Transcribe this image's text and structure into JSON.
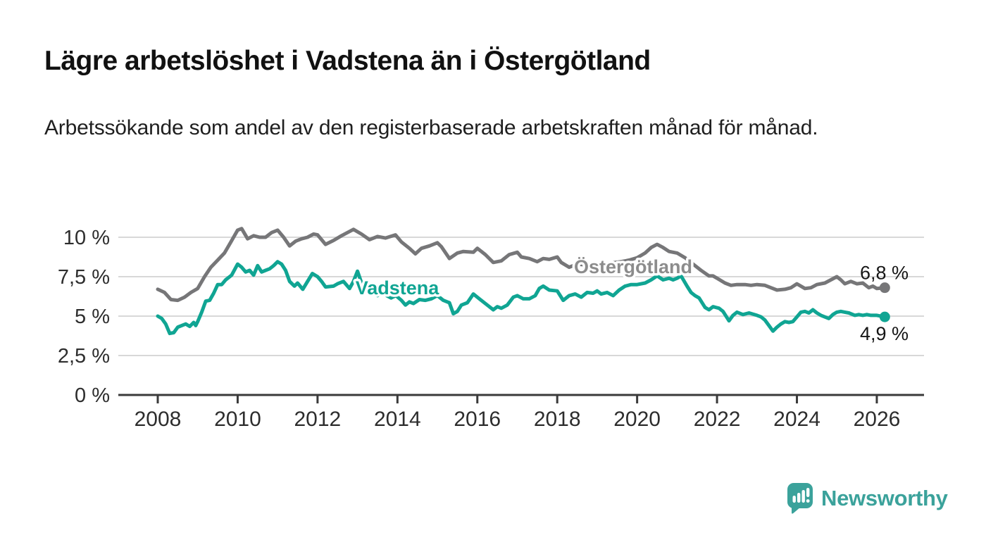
{
  "header": {
    "title": "Lägre arbetslöshet i Vadstena än i Östergötland",
    "subtitle": "Arbetssökande som andel av den registerbaserade arbetskraften månad för månad."
  },
  "branding": {
    "name": "Newsworthy",
    "color": "#3BA29B"
  },
  "chart_data": {
    "type": "line",
    "title": "Lägre arbetslöshet i Vadstena än i Östergötland",
    "ylabel": "Arbetssökande som andel av den registerbaserade arbetskraften",
    "unit": "%",
    "grid": true,
    "x_axis": {
      "ticks": [
        2008,
        2010,
        2012,
        2014,
        2016,
        2018,
        2020,
        2022,
        2024,
        2026
      ],
      "range": [
        2007.0,
        2027.2
      ]
    },
    "y_axis": {
      "ticks": [
        {
          "value": 10,
          "label": "10 %"
        },
        {
          "value": 7.5,
          "label": "7,5 %"
        },
        {
          "value": 5,
          "label": "5 %"
        },
        {
          "value": 2.5,
          "label": "2,5 %"
        },
        {
          "value": 0,
          "label": "0 %"
        }
      ],
      "range": [
        0,
        11.5
      ]
    },
    "axis_color": "#3a3a3a",
    "gridline_color": "#d8d8d8",
    "series": [
      {
        "name": "Östergötland",
        "color": "#767678",
        "end_value": 6.8,
        "end_label": "6,8 %",
        "end_label_position": "above",
        "points": [
          [
            2008.0,
            6.7
          ],
          [
            2008.17,
            6.5
          ],
          [
            2008.33,
            6.05
          ],
          [
            2008.5,
            6.0
          ],
          [
            2008.67,
            6.2
          ],
          [
            2008.83,
            6.5
          ],
          [
            2009.0,
            6.75
          ],
          [
            2009.17,
            7.5
          ],
          [
            2009.33,
            8.1
          ],
          [
            2009.5,
            8.55
          ],
          [
            2009.67,
            9.0
          ],
          [
            2009.83,
            9.7
          ],
          [
            2010.0,
            10.45
          ],
          [
            2010.1,
            10.55
          ],
          [
            2010.25,
            9.9
          ],
          [
            2010.4,
            10.1
          ],
          [
            2010.55,
            10.0
          ],
          [
            2010.7,
            10.0
          ],
          [
            2010.85,
            10.3
          ],
          [
            2011.0,
            10.45
          ],
          [
            2011.15,
            10.0
          ],
          [
            2011.3,
            9.45
          ],
          [
            2011.45,
            9.75
          ],
          [
            2011.6,
            9.9
          ],
          [
            2011.75,
            10.0
          ],
          [
            2011.9,
            10.2
          ],
          [
            2012.0,
            10.15
          ],
          [
            2012.2,
            9.55
          ],
          [
            2012.4,
            9.8
          ],
          [
            2012.6,
            10.1
          ],
          [
            2012.9,
            10.5
          ],
          [
            2013.1,
            10.2
          ],
          [
            2013.3,
            9.85
          ],
          [
            2013.5,
            10.05
          ],
          [
            2013.7,
            9.95
          ],
          [
            2013.95,
            10.15
          ],
          [
            2014.1,
            9.7
          ],
          [
            2014.3,
            9.3
          ],
          [
            2014.45,
            8.95
          ],
          [
            2014.6,
            9.3
          ],
          [
            2014.8,
            9.45
          ],
          [
            2015.0,
            9.65
          ],
          [
            2015.1,
            9.4
          ],
          [
            2015.3,
            8.65
          ],
          [
            2015.5,
            9.0
          ],
          [
            2015.65,
            9.1
          ],
          [
            2015.9,
            9.05
          ],
          [
            2016.0,
            9.3
          ],
          [
            2016.2,
            8.9
          ],
          [
            2016.4,
            8.4
          ],
          [
            2016.6,
            8.5
          ],
          [
            2016.8,
            8.9
          ],
          [
            2017.0,
            9.05
          ],
          [
            2017.1,
            8.75
          ],
          [
            2017.3,
            8.65
          ],
          [
            2017.5,
            8.45
          ],
          [
            2017.65,
            8.65
          ],
          [
            2017.8,
            8.6
          ],
          [
            2018.0,
            8.75
          ],
          [
            2018.1,
            8.4
          ],
          [
            2018.3,
            8.1
          ],
          [
            2018.5,
            8.3
          ],
          [
            2018.7,
            8.25
          ],
          [
            2018.9,
            8.3
          ],
          [
            2019.1,
            8.3
          ],
          [
            2019.3,
            8.35
          ],
          [
            2019.6,
            8.45
          ],
          [
            2019.8,
            8.55
          ],
          [
            2020.0,
            8.7
          ],
          [
            2020.2,
            9.0
          ],
          [
            2020.35,
            9.35
          ],
          [
            2020.5,
            9.55
          ],
          [
            2020.65,
            9.35
          ],
          [
            2020.8,
            9.1
          ],
          [
            2021.0,
            9.0
          ],
          [
            2021.2,
            8.7
          ],
          [
            2021.4,
            8.3
          ],
          [
            2021.6,
            7.9
          ],
          [
            2021.8,
            7.55
          ],
          [
            2021.9,
            7.55
          ],
          [
            2022.0,
            7.4
          ],
          [
            2022.2,
            7.1
          ],
          [
            2022.35,
            6.95
          ],
          [
            2022.5,
            7.0
          ],
          [
            2022.7,
            7.0
          ],
          [
            2022.85,
            6.95
          ],
          [
            2023.0,
            7.0
          ],
          [
            2023.2,
            6.95
          ],
          [
            2023.35,
            6.8
          ],
          [
            2023.5,
            6.65
          ],
          [
            2023.7,
            6.7
          ],
          [
            2023.85,
            6.8
          ],
          [
            2024.0,
            7.05
          ],
          [
            2024.2,
            6.75
          ],
          [
            2024.35,
            6.8
          ],
          [
            2024.5,
            7.0
          ],
          [
            2024.7,
            7.1
          ],
          [
            2024.85,
            7.3
          ],
          [
            2025.0,
            7.5
          ],
          [
            2025.1,
            7.3
          ],
          [
            2025.2,
            7.05
          ],
          [
            2025.35,
            7.2
          ],
          [
            2025.5,
            7.05
          ],
          [
            2025.65,
            7.1
          ],
          [
            2025.8,
            6.8
          ],
          [
            2025.9,
            6.9
          ],
          [
            2026.0,
            6.75
          ],
          [
            2026.2,
            6.8
          ]
        ]
      },
      {
        "name": "Vadstena",
        "color": "#10A593",
        "end_value": 4.9,
        "end_label": "4,9 %",
        "end_label_position": "below",
        "points": [
          [
            2008.0,
            5.0
          ],
          [
            2008.1,
            4.85
          ],
          [
            2008.2,
            4.5
          ],
          [
            2008.3,
            3.9
          ],
          [
            2008.4,
            3.95
          ],
          [
            2008.5,
            4.3
          ],
          [
            2008.6,
            4.4
          ],
          [
            2008.7,
            4.5
          ],
          [
            2008.8,
            4.35
          ],
          [
            2008.9,
            4.6
          ],
          [
            2008.95,
            4.4
          ],
          [
            2009.0,
            4.65
          ],
          [
            2009.1,
            5.25
          ],
          [
            2009.2,
            5.95
          ],
          [
            2009.3,
            6.0
          ],
          [
            2009.4,
            6.45
          ],
          [
            2009.5,
            7.0
          ],
          [
            2009.6,
            7.0
          ],
          [
            2009.7,
            7.3
          ],
          [
            2009.85,
            7.6
          ],
          [
            2010.0,
            8.3
          ],
          [
            2010.1,
            8.1
          ],
          [
            2010.2,
            7.8
          ],
          [
            2010.3,
            7.9
          ],
          [
            2010.4,
            7.6
          ],
          [
            2010.5,
            8.2
          ],
          [
            2010.6,
            7.8
          ],
          [
            2010.7,
            7.9
          ],
          [
            2010.8,
            8.0
          ],
          [
            2010.9,
            8.2
          ],
          [
            2011.0,
            8.45
          ],
          [
            2011.1,
            8.3
          ],
          [
            2011.2,
            7.9
          ],
          [
            2011.3,
            7.2
          ],
          [
            2011.42,
            6.9
          ],
          [
            2011.5,
            7.1
          ],
          [
            2011.63,
            6.7
          ],
          [
            2011.75,
            7.2
          ],
          [
            2011.87,
            7.7
          ],
          [
            2012.0,
            7.5
          ],
          [
            2012.1,
            7.2
          ],
          [
            2012.2,
            6.85
          ],
          [
            2012.4,
            6.9
          ],
          [
            2012.5,
            7.05
          ],
          [
            2012.65,
            7.2
          ],
          [
            2012.8,
            6.75
          ],
          [
            2012.9,
            7.2
          ],
          [
            2013.0,
            7.85
          ],
          [
            2013.15,
            6.75
          ],
          [
            2013.27,
            7.05
          ],
          [
            2013.4,
            6.6
          ],
          [
            2013.5,
            6.3
          ],
          [
            2013.6,
            6.6
          ],
          [
            2013.73,
            6.3
          ],
          [
            2013.84,
            6.15
          ],
          [
            2013.96,
            6.3
          ],
          [
            2014.1,
            6.0
          ],
          [
            2014.2,
            5.7
          ],
          [
            2014.3,
            5.9
          ],
          [
            2014.4,
            5.8
          ],
          [
            2014.55,
            6.05
          ],
          [
            2014.7,
            6.0
          ],
          [
            2014.85,
            6.1
          ],
          [
            2015.0,
            6.3
          ],
          [
            2015.15,
            6.0
          ],
          [
            2015.3,
            5.85
          ],
          [
            2015.4,
            5.15
          ],
          [
            2015.5,
            5.3
          ],
          [
            2015.6,
            5.7
          ],
          [
            2015.75,
            5.85
          ],
          [
            2015.9,
            6.4
          ],
          [
            2016.05,
            6.1
          ],
          [
            2016.25,
            5.7
          ],
          [
            2016.4,
            5.4
          ],
          [
            2016.5,
            5.6
          ],
          [
            2016.6,
            5.5
          ],
          [
            2016.75,
            5.7
          ],
          [
            2016.9,
            6.2
          ],
          [
            2017.0,
            6.3
          ],
          [
            2017.15,
            6.1
          ],
          [
            2017.3,
            6.1
          ],
          [
            2017.45,
            6.3
          ],
          [
            2017.55,
            6.75
          ],
          [
            2017.65,
            6.9
          ],
          [
            2017.8,
            6.65
          ],
          [
            2018.0,
            6.6
          ],
          [
            2018.15,
            6.0
          ],
          [
            2018.3,
            6.3
          ],
          [
            2018.45,
            6.4
          ],
          [
            2018.6,
            6.2
          ],
          [
            2018.75,
            6.5
          ],
          [
            2018.9,
            6.45
          ],
          [
            2019.0,
            6.6
          ],
          [
            2019.1,
            6.4
          ],
          [
            2019.25,
            6.5
          ],
          [
            2019.4,
            6.3
          ],
          [
            2019.55,
            6.65
          ],
          [
            2019.7,
            6.9
          ],
          [
            2019.85,
            7.0
          ],
          [
            2020.0,
            7.0
          ],
          [
            2020.2,
            7.1
          ],
          [
            2020.35,
            7.3
          ],
          [
            2020.5,
            7.55
          ],
          [
            2020.65,
            7.3
          ],
          [
            2020.8,
            7.4
          ],
          [
            2020.9,
            7.3
          ],
          [
            2021.0,
            7.4
          ],
          [
            2021.1,
            7.55
          ],
          [
            2021.25,
            6.9
          ],
          [
            2021.35,
            6.5
          ],
          [
            2021.45,
            6.3
          ],
          [
            2021.55,
            6.15
          ],
          [
            2021.7,
            5.55
          ],
          [
            2021.8,
            5.4
          ],
          [
            2021.9,
            5.6
          ],
          [
            2022.05,
            5.5
          ],
          [
            2022.15,
            5.3
          ],
          [
            2022.3,
            4.7
          ],
          [
            2022.4,
            5.05
          ],
          [
            2022.5,
            5.25
          ],
          [
            2022.65,
            5.1
          ],
          [
            2022.8,
            5.2
          ],
          [
            2023.0,
            5.05
          ],
          [
            2023.1,
            4.95
          ],
          [
            2023.2,
            4.75
          ],
          [
            2023.3,
            4.4
          ],
          [
            2023.4,
            4.05
          ],
          [
            2023.5,
            4.3
          ],
          [
            2023.6,
            4.5
          ],
          [
            2023.7,
            4.65
          ],
          [
            2023.8,
            4.6
          ],
          [
            2023.9,
            4.65
          ],
          [
            2024.0,
            4.95
          ],
          [
            2024.1,
            5.25
          ],
          [
            2024.2,
            5.3
          ],
          [
            2024.3,
            5.2
          ],
          [
            2024.4,
            5.4
          ],
          [
            2024.5,
            5.2
          ],
          [
            2024.6,
            5.05
          ],
          [
            2024.8,
            4.85
          ],
          [
            2024.9,
            5.1
          ],
          [
            2025.0,
            5.25
          ],
          [
            2025.1,
            5.3
          ],
          [
            2025.2,
            5.25
          ],
          [
            2025.3,
            5.2
          ],
          [
            2025.45,
            5.05
          ],
          [
            2025.55,
            5.1
          ],
          [
            2025.65,
            5.05
          ],
          [
            2025.75,
            5.1
          ],
          [
            2025.85,
            5.05
          ],
          [
            2026.0,
            5.05
          ],
          [
            2026.2,
            4.95
          ]
        ]
      }
    ],
    "annotations": [
      {
        "text": "Vadstena",
        "x": 2012.95,
        "y": 6.38,
        "color": "#10A593"
      },
      {
        "text": "Östergötland",
        "x": 2018.42,
        "y": 7.72,
        "color": "#8c8c8c"
      }
    ],
    "legend_position": "inline-labels"
  }
}
